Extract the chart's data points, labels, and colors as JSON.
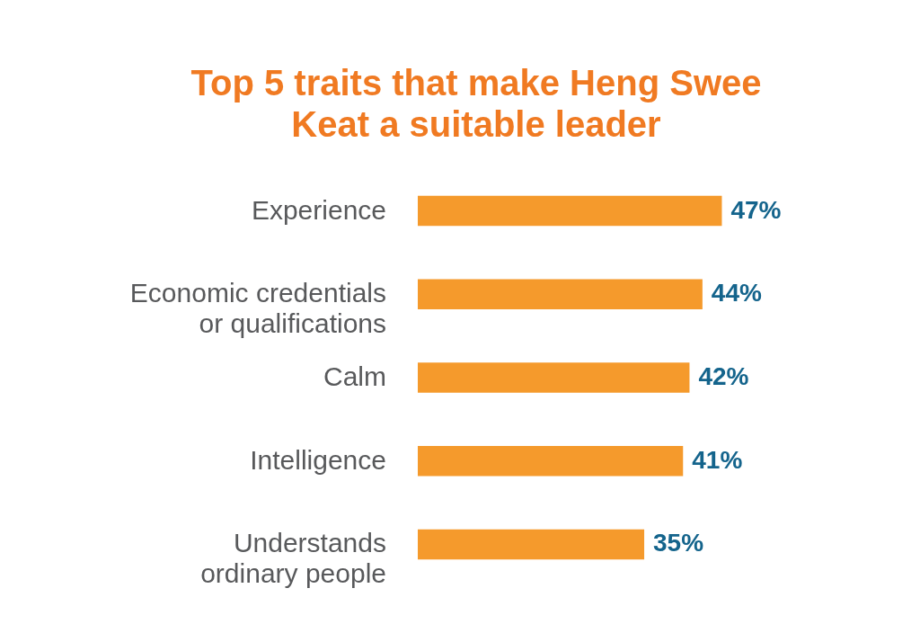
{
  "chart_data": {
    "type": "bar",
    "orientation": "horizontal",
    "title": "Top 5 traits that make Heng Swee Keat a suitable leader",
    "categories": [
      "Experience",
      "Economic credentials or qualifications",
      "Calm",
      "Intelligence",
      "Understands ordinary people"
    ],
    "values": [
      47,
      44,
      42,
      41,
      35
    ],
    "value_labels": [
      "47%",
      "44%",
      "42%",
      "41%",
      "35%"
    ],
    "color": "#f59a2c"
  }
}
